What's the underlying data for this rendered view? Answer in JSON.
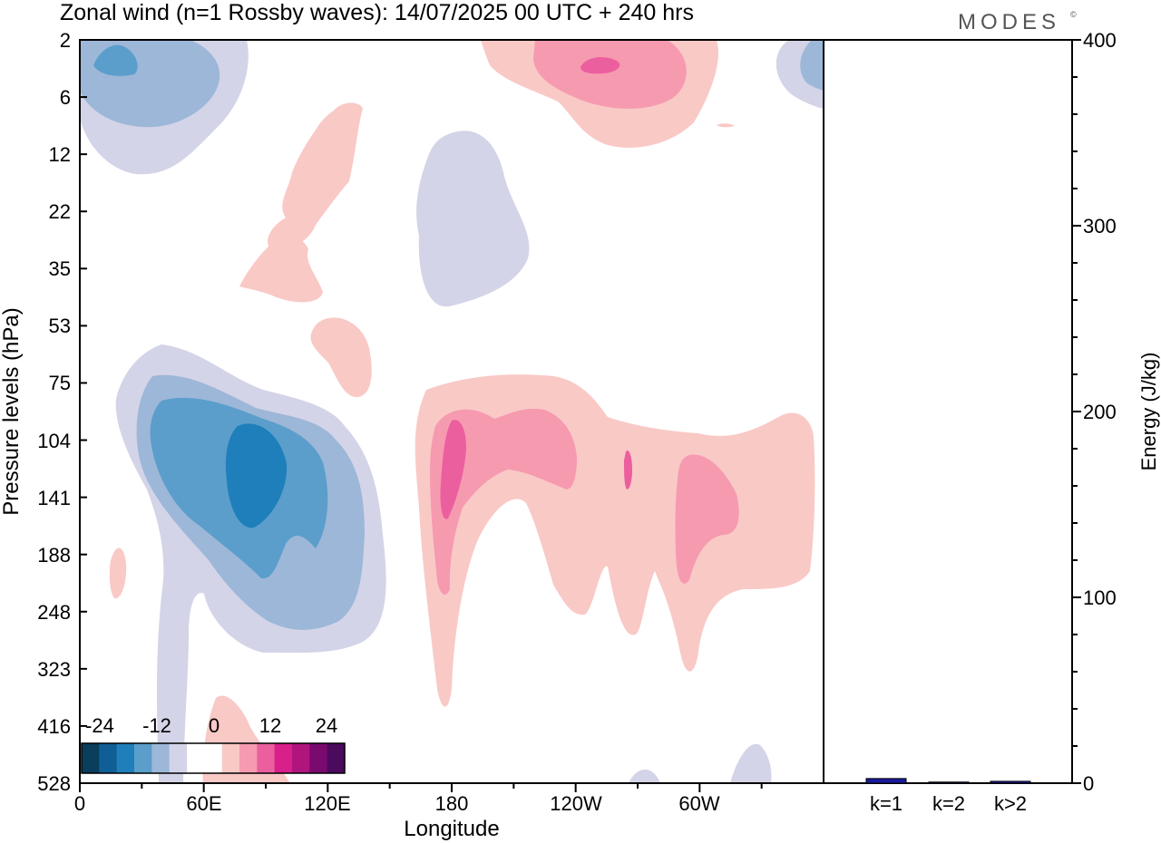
{
  "title": "Zonal wind (n=1 Rossby waves):  14/07/2025  00 UTC  + 240 hrs",
  "brand": "MODES",
  "brand_mark": "©",
  "colors": {
    "neg4": "#1f7fba",
    "neg3": "#5b9ecb",
    "neg2": "#9db7d8",
    "neg1": "#d4d4e8",
    "pos1": "#f9c9c6",
    "pos2": "#f69ab0",
    "pos3": "#ec5f9e",
    "bar": "#1a1a9e"
  },
  "chart_data": [
    {
      "type": "heatmap",
      "xlabel": "Longitude",
      "ylabel": "Pressure levels (hPa)",
      "x_ticks": [
        "0",
        "60E",
        "120E",
        "180",
        "120W",
        "60W"
      ],
      "y_ticks": [
        "2",
        "6",
        "12",
        "22",
        "35",
        "53",
        "75",
        "104",
        "141",
        "188",
        "248",
        "323",
        "416",
        "528"
      ],
      "colorbar_labels": [
        "-24",
        "-12",
        "0",
        "12",
        "24"
      ],
      "colorbar_colors": [
        "#0b3d5c",
        "#0f5f96",
        "#1f7fba",
        "#5b9ecb",
        "#9db7d8",
        "#d4d4e8",
        "#ffffff",
        "#ffffff",
        "#f9c9c6",
        "#f69ab0",
        "#ec5f9e",
        "#d81f8a",
        "#b0157e",
        "#7a0a6e",
        "#4a0a5e"
      ]
    },
    {
      "type": "bar",
      "ylabel": "Energy (J/kg)",
      "categories": [
        "k=1",
        "k=2",
        "k>2"
      ],
      "values": [
        2.5,
        0.6,
        1.0
      ],
      "ylim": [
        0,
        400
      ],
      "y_ticks": [
        "0",
        "100",
        "200",
        "300",
        "400"
      ]
    }
  ]
}
